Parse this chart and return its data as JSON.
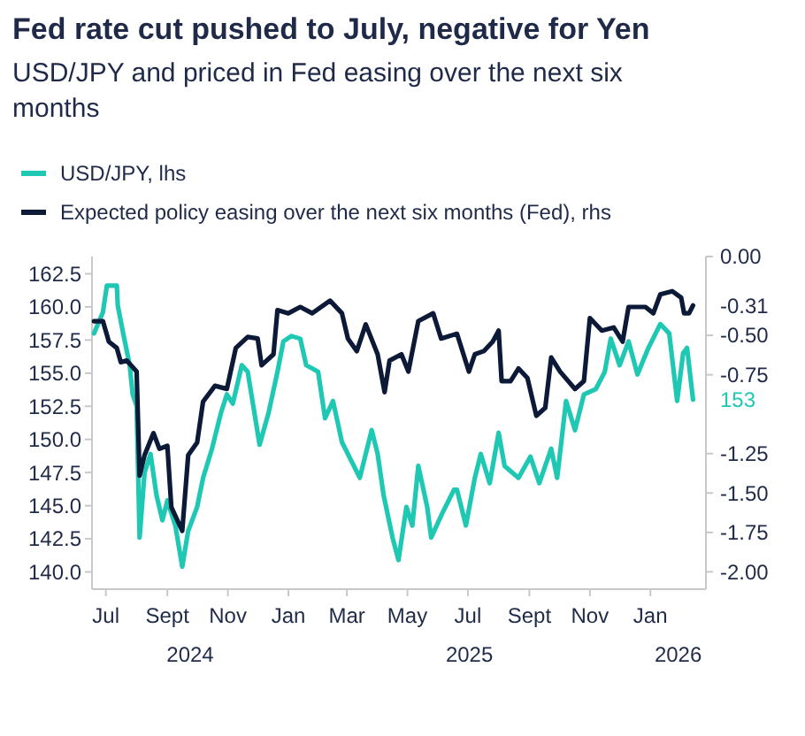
{
  "chart_data": {
    "type": "line",
    "title": "Fed rate cut pushed to July, negative for Yen",
    "subtitle": "USD/JPY and priced in Fed easing over the next six months",
    "xlim": [
      "2024-06-17",
      "2026-02-26"
    ],
    "xticks": [
      {
        "value": "2024-07-01",
        "label": "Jul"
      },
      {
        "value": "2024-09-01",
        "label": "Sept"
      },
      {
        "value": "2024-11-01",
        "label": "Nov"
      },
      {
        "value": "2025-01-01",
        "label": "Jan"
      },
      {
        "value": "2025-03-01",
        "label": "Mar"
      },
      {
        "value": "2025-05-01",
        "label": "May"
      },
      {
        "value": "2025-07-01",
        "label": "Jul"
      },
      {
        "value": "2025-09-01",
        "label": "Sept"
      },
      {
        "value": "2025-11-01",
        "label": "Nov"
      },
      {
        "value": "2026-01-01",
        "label": "Jan"
      }
    ],
    "annotations": [
      "2024",
      "2025",
      "2026"
    ],
    "ylim": [
      138.7,
      163.8
    ],
    "yticks": [
      {
        "value": 140,
        "label": "140.0"
      },
      {
        "value": 142.5,
        "label": "142.5"
      },
      {
        "value": 145,
        "label": "145.0"
      },
      {
        "value": 147.5,
        "label": "147.5"
      },
      {
        "value": 150,
        "label": "150.0"
      },
      {
        "value": 152.5,
        "label": "152.5"
      },
      {
        "value": 155,
        "label": "155.0"
      },
      {
        "value": 157.5,
        "label": "157.5"
      },
      {
        "value": 160,
        "label": "160.0"
      },
      {
        "value": 162.5,
        "label": "162.5"
      }
    ],
    "y2lim": [
      -2.11,
      0
    ],
    "y2ticks": [
      {
        "value": 0,
        "label": "0.00"
      },
      {
        "value": -0.5,
        "label": "-0.50"
      },
      {
        "value": -0.75,
        "label": "-0.75"
      },
      {
        "value": -1.25,
        "label": "-1.25"
      },
      {
        "value": -1.5,
        "label": "-1.50"
      },
      {
        "value": -1.75,
        "label": "-1.75"
      },
      {
        "value": -2,
        "label": "-2.00"
      }
    ],
    "legend": "top left",
    "grid": false,
    "series": [
      {
        "name": "USD/JPY, lhs",
        "color": "#1ec8b2",
        "axis": "y",
        "x": [
          "2024-06-19",
          "2024-06-28",
          "2024-07-02",
          "2024-07-12",
          "2024-07-13",
          "2024-07-19",
          "2024-07-25",
          "2024-07-28",
          "2024-08-01",
          "2024-08-04",
          "2024-08-09",
          "2024-08-15",
          "2024-08-21",
          "2024-08-27",
          "2024-09-01",
          "2024-09-09",
          "2024-09-16",
          "2024-09-22",
          "2024-10-01",
          "2024-10-07",
          "2024-10-16",
          "2024-10-25",
          "2024-10-31",
          "2024-11-06",
          "2024-11-15",
          "2024-11-21",
          "2024-12-03",
          "2024-12-12",
          "2024-12-21",
          "2024-12-27",
          "2025-01-04",
          "2025-01-13",
          "2025-01-19",
          "2025-01-31",
          "2025-02-07",
          "2025-02-15",
          "2025-02-24",
          "2025-03-08",
          "2025-03-14",
          "2025-03-26",
          "2025-04-01",
          "2025-04-07",
          "2025-04-16",
          "2025-04-22",
          "2025-04-30",
          "2025-05-06",
          "2025-05-12",
          "2025-05-21",
          "2025-05-25",
          "2025-06-05",
          "2025-06-17",
          "2025-06-20",
          "2025-06-29",
          "2025-07-08",
          "2025-07-14",
          "2025-07-23",
          "2025-08-01",
          "2025-08-07",
          "2025-08-21",
          "2025-09-02",
          "2025-09-11",
          "2025-09-23",
          "2025-09-29",
          "2025-10-08",
          "2025-10-17",
          "2025-10-26",
          "2025-11-07",
          "2025-11-16",
          "2025-11-22",
          "2025-12-01",
          "2025-12-10",
          "2025-12-19",
          "2025-12-30",
          "2026-01-11",
          "2026-01-20",
          "2026-01-28",
          "2026-02-03",
          "2026-02-07",
          "2026-02-13"
        ],
        "values": [
          158.0,
          159.6,
          161.6,
          161.6,
          160.1,
          157.8,
          155.6,
          153.4,
          152.5,
          142.6,
          147.5,
          148.9,
          145.8,
          143.9,
          145.4,
          143.5,
          140.4,
          143.1,
          144.9,
          147.1,
          149.3,
          152.0,
          153.4,
          152.7,
          155.6,
          155.1,
          149.6,
          152.0,
          155.1,
          157.4,
          157.8,
          157.6,
          155.6,
          155.1,
          151.6,
          152.9,
          149.8,
          148.0,
          147.1,
          150.7,
          148.9,
          145.8,
          142.6,
          140.9,
          144.9,
          143.5,
          148.0,
          144.9,
          142.6,
          144.4,
          146.2,
          146.2,
          143.5,
          147.1,
          148.9,
          146.7,
          150.5,
          148.0,
          147.1,
          148.7,
          146.7,
          149.3,
          147.1,
          152.9,
          150.7,
          153.4,
          153.8,
          155.1,
          157.6,
          155.6,
          157.4,
          154.9,
          156.9,
          158.7,
          158.0,
          152.9,
          156.5,
          156.9,
          153
        ],
        "value_labels": [
          null,
          null,
          null,
          null,
          null,
          null,
          null,
          null,
          null,
          null,
          null,
          null,
          null,
          null,
          null,
          null,
          null,
          null,
          null,
          null,
          null,
          null,
          null,
          null,
          null,
          null,
          null,
          null,
          null,
          null,
          null,
          null,
          null,
          null,
          null,
          null,
          null,
          null,
          null,
          null,
          null,
          null,
          null,
          null,
          null,
          null,
          null,
          null,
          null,
          null,
          null,
          null,
          null,
          null,
          null,
          null,
          null,
          null,
          null,
          null,
          null,
          null,
          null,
          null,
          null,
          null,
          null,
          null,
          null,
          null,
          null,
          null,
          null,
          null,
          null,
          null,
          null,
          null,
          "153"
        ]
      },
      {
        "name": "Expected policy easing over the next six months (Fed), rhs",
        "color": "#0c1a38",
        "axis": "y2",
        "x": [
          "2024-06-19",
          "2024-06-28",
          "2024-07-04",
          "2024-07-12",
          "2024-07-16",
          "2024-07-22",
          "2024-08-01",
          "2024-08-04",
          "2024-08-09",
          "2024-08-18",
          "2024-08-24",
          "2024-09-01",
          "2024-09-05",
          "2024-09-16",
          "2024-09-22",
          "2024-10-01",
          "2024-10-07",
          "2024-10-19",
          "2024-10-31",
          "2024-11-09",
          "2024-11-21",
          "2024-12-01",
          "2024-12-05",
          "2024-12-17",
          "2024-12-21",
          "2025-01-01",
          "2025-01-13",
          "2025-01-25",
          "2025-02-12",
          "2025-02-24",
          "2025-03-02",
          "2025-03-11",
          "2025-03-20",
          "2025-04-01",
          "2025-04-08",
          "2025-04-13",
          "2025-04-25",
          "2025-05-02",
          "2025-05-12",
          "2025-05-27",
          "2025-06-04",
          "2025-06-20",
          "2025-07-02",
          "2025-07-08",
          "2025-07-17",
          "2025-07-26",
          "2025-08-01",
          "2025-08-04",
          "2025-08-13",
          "2025-08-21",
          "2025-08-30",
          "2025-09-08",
          "2025-09-17",
          "2025-09-23",
          "2025-10-02",
          "2025-10-17",
          "2025-10-26",
          "2025-11-01",
          "2025-11-13",
          "2025-11-25",
          "2025-12-04",
          "2025-12-10",
          "2025-12-27",
          "2026-01-04",
          "2026-01-11",
          "2026-01-23",
          "2026-02-01",
          "2026-02-04",
          "2026-02-09",
          "2026-02-13"
        ],
        "values": [
          -0.41,
          -0.41,
          -0.54,
          -0.58,
          -0.67,
          -0.66,
          -0.73,
          -1.39,
          -1.26,
          -1.12,
          -1.22,
          -1.2,
          -1.59,
          -1.74,
          -1.26,
          -1.18,
          -0.92,
          -0.82,
          -0.84,
          -0.58,
          -0.51,
          -0.52,
          -0.69,
          -0.62,
          -0.34,
          -0.36,
          -0.32,
          -0.36,
          -0.28,
          -0.36,
          -0.52,
          -0.6,
          -0.43,
          -0.62,
          -0.86,
          -0.66,
          -0.62,
          -0.73,
          -0.41,
          -0.36,
          -0.52,
          -0.49,
          -0.73,
          -0.62,
          -0.6,
          -0.54,
          -0.47,
          -0.79,
          -0.79,
          -0.71,
          -0.77,
          -1.01,
          -0.96,
          -0.64,
          -0.73,
          -0.84,
          -0.79,
          -0.39,
          -0.47,
          -0.45,
          -0.54,
          -0.32,
          -0.32,
          -0.36,
          -0.24,
          -0.22,
          -0.26,
          -0.36,
          -0.36,
          -0.31
        ],
        "value_labels": [
          null,
          null,
          null,
          null,
          null,
          null,
          null,
          null,
          null,
          null,
          null,
          null,
          null,
          null,
          null,
          null,
          null,
          null,
          null,
          null,
          null,
          null,
          null,
          null,
          null,
          null,
          null,
          null,
          null,
          null,
          null,
          null,
          null,
          null,
          null,
          null,
          null,
          null,
          null,
          null,
          null,
          null,
          null,
          null,
          null,
          null,
          null,
          null,
          null,
          null,
          null,
          null,
          null,
          null,
          null,
          null,
          null,
          null,
          null,
          null,
          null,
          null,
          null,
          null,
          null,
          null,
          null,
          null,
          null,
          "-0.31"
        ]
      }
    ]
  }
}
